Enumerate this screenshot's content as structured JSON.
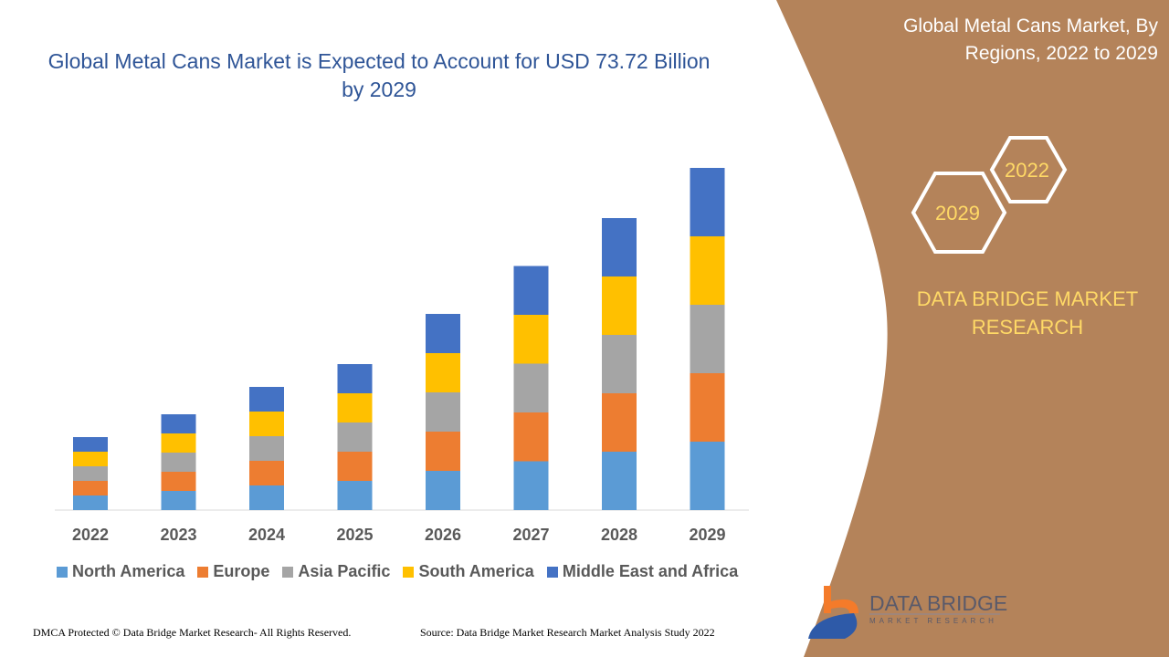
{
  "chart_data": {
    "type": "bar",
    "stacked": true,
    "title": "Global Metal Cans Market is Expected to Account for USD 73.72 Billion by 2029",
    "categories": [
      "2022",
      "2023",
      "2024",
      "2025",
      "2026",
      "2027",
      "2028",
      "2029"
    ],
    "series": [
      {
        "name": "North America",
        "color": "#5b9bd5",
        "values": [
          16,
          21,
          27,
          32,
          43,
          53.5,
          64,
          75
        ]
      },
      {
        "name": "Europe",
        "color": "#ed7d31",
        "values": [
          16,
          21,
          27,
          32,
          43,
          53.5,
          64,
          75
        ]
      },
      {
        "name": "Asia Pacific",
        "color": "#a5a5a5",
        "values": [
          16,
          21,
          27,
          32,
          43,
          53.5,
          64,
          75
        ]
      },
      {
        "name": "South America",
        "color": "#ffc000",
        "values": [
          16,
          21,
          27,
          32,
          43,
          53.5,
          64,
          75
        ]
      },
      {
        "name": "Middle East and Africa",
        "color": "#4472c4",
        "values": [
          16,
          21,
          27,
          32,
          43,
          53.5,
          64,
          75
        ]
      }
    ],
    "ylim": [
      0,
      400
    ],
    "grid": false,
    "legend_position": "bottom"
  },
  "panel": {
    "title": "Global Metal Cans Market, By Regions, 2022 to 2029",
    "hex_start": "2022",
    "hex_end": "2029",
    "brand": "DATA BRIDGE MARKET RESEARCH",
    "color": "#b4835a"
  },
  "logo": {
    "name": "DATA BRIDGE",
    "sub": "MARKET RESEARCH"
  },
  "footer": {
    "left": "DMCA Protected © Data Bridge Market Research- All Rights Reserved.",
    "right": "Source: Data Bridge Market Research Market Analysis Study 2022"
  }
}
